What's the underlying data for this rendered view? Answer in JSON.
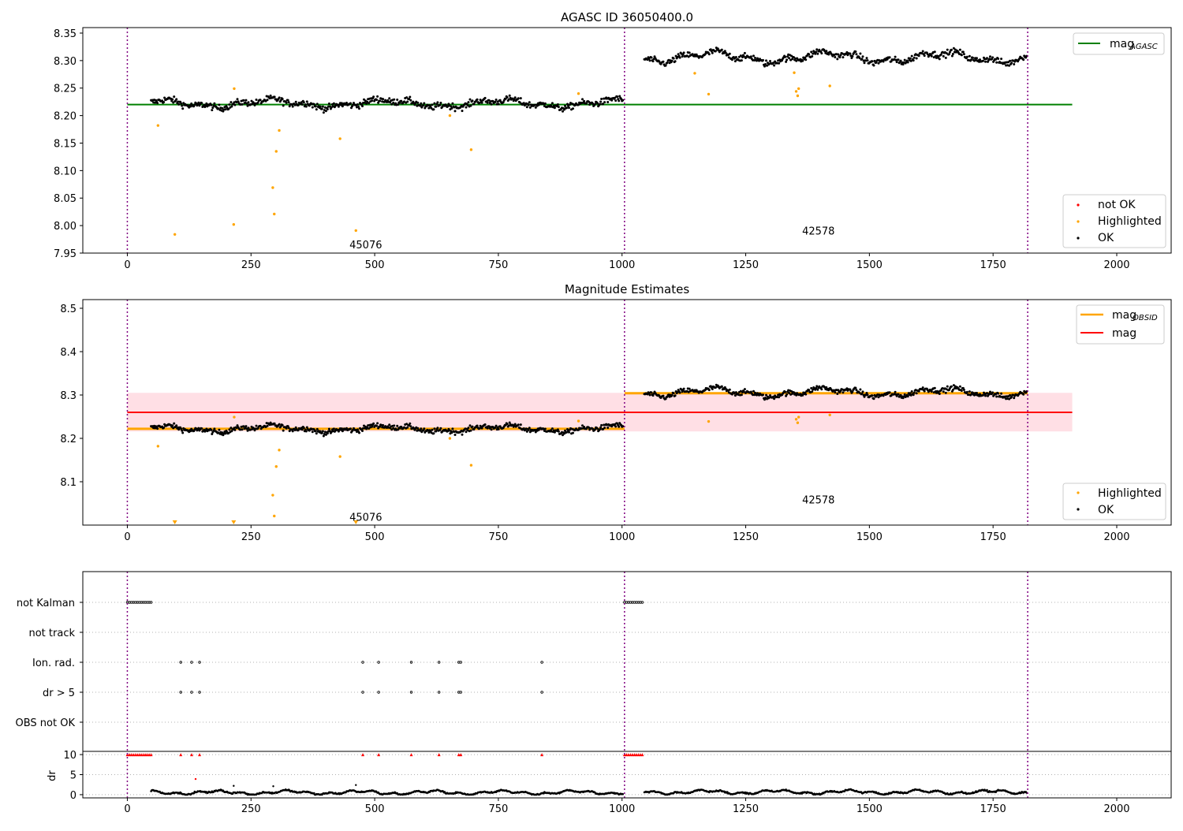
{
  "colors": {
    "ok": "#000000",
    "highlighted": "#ffa500",
    "not_ok": "#ff0000",
    "mag_agasc": "#008000",
    "mag_obsid": "#ffa500",
    "mag": "#ff0000",
    "band": "#ffc0cb",
    "obs_boundary": "#800080",
    "grid": "#b0b0b0"
  },
  "chart_data": [
    {
      "type": "scatter",
      "title": "AGASC ID 36050400.0",
      "xlim": [
        -90,
        2110
      ],
      "ylim": [
        7.95,
        8.36
      ],
      "xticks": [
        "0",
        "250",
        "500",
        "750",
        "1000",
        "1250",
        "1500",
        "1750",
        "2000"
      ],
      "yticks": [
        "7.95",
        "8.00",
        "8.05",
        "8.10",
        "8.15",
        "8.20",
        "8.25",
        "8.30",
        "8.35"
      ],
      "obs_boundaries": [
        0,
        1005,
        1820
      ],
      "obs_labels": [
        {
          "text": "45076",
          "x": 465,
          "y": 7.966
        },
        {
          "text": "42578",
          "x": 1380,
          "y": 7.991
        }
      ],
      "lines": [
        {
          "name": "mag_AGASC",
          "x": [
            0,
            1910
          ],
          "y": [
            8.22,
            8.22
          ],
          "color": "mag_agasc"
        }
      ],
      "legend_lines": {
        "main": "mag",
        "sub": "AGASC",
        "position": "upper right"
      },
      "legend_markers": {
        "items": [
          "not OK",
          "Highlighted",
          "OK"
        ],
        "position": "lower right"
      },
      "ok_segments": [
        {
          "x0": 48,
          "x1": 1002,
          "level": 8.222,
          "noise": 0.006,
          "wobble": 0.006
        },
        {
          "x0": 1045,
          "x1": 1818,
          "level": 8.306,
          "noise": 0.006,
          "wobble": 0.008
        }
      ],
      "highlighted": [
        {
          "x": 62,
          "y": 8.182
        },
        {
          "x": 96,
          "y": 7.984
        },
        {
          "x": 215,
          "y": 8.002
        },
        {
          "x": 216,
          "y": 8.249
        },
        {
          "x": 294,
          "y": 8.069
        },
        {
          "x": 297,
          "y": 8.021
        },
        {
          "x": 301,
          "y": 8.135
        },
        {
          "x": 307,
          "y": 8.173
        },
        {
          "x": 430,
          "y": 8.158
        },
        {
          "x": 462,
          "y": 7.991
        },
        {
          "x": 652,
          "y": 8.2
        },
        {
          "x": 695,
          "y": 8.138
        },
        {
          "x": 912,
          "y": 8.24
        },
        {
          "x": 1147,
          "y": 8.277
        },
        {
          "x": 1175,
          "y": 8.239
        },
        {
          "x": 1348,
          "y": 8.278
        },
        {
          "x": 1352,
          "y": 8.244
        },
        {
          "x": 1355,
          "y": 8.236
        },
        {
          "x": 1357,
          "y": 8.249
        },
        {
          "x": 1420,
          "y": 8.254
        }
      ]
    },
    {
      "type": "scatter",
      "title": "Magnitude Estimates",
      "xlim": [
        -90,
        2110
      ],
      "ylim": [
        8.0,
        8.52
      ],
      "xticks": [
        "0",
        "250",
        "500",
        "750",
        "1000",
        "1250",
        "1500",
        "1750",
        "2000"
      ],
      "yticks": [
        "8.1",
        "8.2",
        "8.3",
        "8.4",
        "8.5"
      ],
      "obs_boundaries": [
        0,
        1005,
        1820
      ],
      "obs_labels": [
        {
          "text": "45076",
          "x": 465,
          "y": 8.019
        },
        {
          "text": "42578",
          "x": 1380,
          "y": 8.059
        }
      ],
      "band": {
        "x": [
          0,
          1910
        ],
        "y": [
          8.216,
          8.305
        ]
      },
      "lines": [
        {
          "name": "mag",
          "x": [
            0,
            1910
          ],
          "y": [
            8.26,
            8.26
          ],
          "color": "mag"
        },
        {
          "name": "mag_OBSID 45076",
          "x": [
            0,
            1005
          ],
          "y": [
            8.222,
            8.222
          ],
          "color": "mag_obsid"
        },
        {
          "name": "mag_OBSID 42578",
          "x": [
            1005,
            1820
          ],
          "y": [
            8.304,
            8.304
          ],
          "color": "mag_obsid"
        }
      ],
      "legend_lines": {
        "items": [
          {
            "main": "mag",
            "sub": "OBSID"
          },
          {
            "main": "mag",
            "sub": ""
          }
        ],
        "position": "upper right"
      },
      "legend_markers": {
        "items": [
          "Highlighted",
          "OK"
        ],
        "position": "lower right"
      },
      "ok_segments": [
        {
          "x0": 48,
          "x1": 1002,
          "level": 8.222,
          "noise": 0.006,
          "wobble": 0.006
        },
        {
          "x0": 1045,
          "x1": 1818,
          "level": 8.306,
          "noise": 0.006,
          "wobble": 0.008
        }
      ],
      "highlighted": [
        {
          "x": 62,
          "y": 8.182
        },
        {
          "x": 216,
          "y": 8.249
        },
        {
          "x": 294,
          "y": 8.069
        },
        {
          "x": 297,
          "y": 8.021
        },
        {
          "x": 301,
          "y": 8.135
        },
        {
          "x": 307,
          "y": 8.173
        },
        {
          "x": 430,
          "y": 8.158
        },
        {
          "x": 652,
          "y": 8.2
        },
        {
          "x": 695,
          "y": 8.138
        },
        {
          "x": 912,
          "y": 8.24
        },
        {
          "x": 1175,
          "y": 8.239
        },
        {
          "x": 1352,
          "y": 8.244
        },
        {
          "x": 1355,
          "y": 8.236
        },
        {
          "x": 1357,
          "y": 8.249
        },
        {
          "x": 1420,
          "y": 8.254
        }
      ],
      "below_range_markers": [
        96,
        215,
        462
      ]
    },
    {
      "type": "scatter",
      "title": "",
      "xlim": [
        -90,
        2110
      ],
      "ylabel": "dr",
      "xticks": [
        "0",
        "250",
        "500",
        "750",
        "1000",
        "1250",
        "1500",
        "1750",
        "2000"
      ],
      "flag_rows": [
        "not Kalman",
        "not track",
        "Ion. rad.",
        "dr > 5",
        "OBS not OK"
      ],
      "dr_ticks": [
        "0",
        "5",
        "10"
      ],
      "dr_ylim": [
        -0.8,
        10.8
      ],
      "obs_boundaries": [
        0,
        1005,
        1820
      ],
      "flag_points": {
        "not Kalman": [
          [
            0,
            48
          ],
          [
            1005,
            1043
          ]
        ],
        "Ion. rad.": [
          108,
          130,
          146,
          476,
          508,
          574,
          630,
          670,
          674,
          838
        ],
        "dr > 5": [
          108,
          130,
          146,
          476,
          508,
          574,
          630,
          670,
          674,
          838
        ]
      },
      "dr_capped": {
        "ranges": [
          [
            0,
            48
          ],
          [
            1005,
            1043
          ]
        ],
        "points": [
          108,
          130,
          146,
          476,
          508,
          574,
          630,
          670,
          674,
          838
        ],
        "value": 10
      },
      "dr_extra": [
        {
          "x": 138,
          "y": 3.9,
          "color": "not_ok"
        },
        {
          "x": 215,
          "y": 2.2
        },
        {
          "x": 295,
          "y": 2.1
        },
        {
          "x": 462,
          "y": 2.4
        }
      ],
      "dr_segments": [
        {
          "x0": 48,
          "x1": 1002,
          "level": 0.55
        },
        {
          "x0": 1045,
          "x1": 1818,
          "level": 0.65
        }
      ]
    }
  ]
}
